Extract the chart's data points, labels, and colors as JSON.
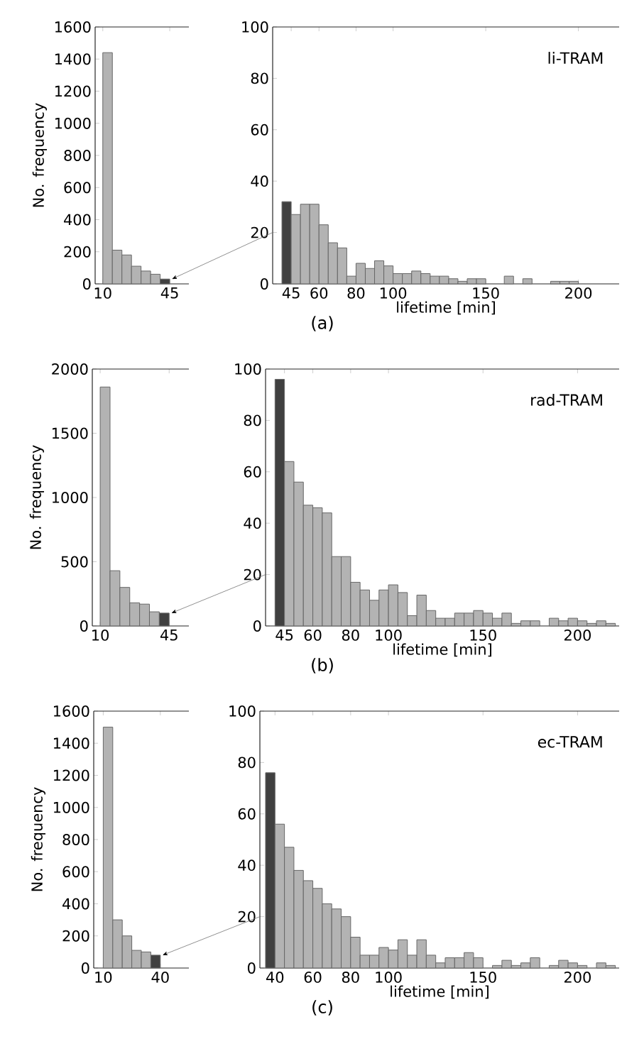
{
  "chart_data": [
    {
      "type": "histogram",
      "ylabel": "No. frequency",
      "bins": [
        10,
        15,
        20,
        25,
        30,
        35,
        40,
        45
      ],
      "values": [
        1440,
        210,
        180,
        110,
        80,
        60,
        30
      ],
      "colors": [
        "#b3b3b3",
        "#b3b3b3",
        "#b3b3b3",
        "#b3b3b3",
        "#b3b3b3",
        "#b3b3b3",
        "#404040"
      ],
      "xlim": [
        6,
        55
      ],
      "ylim": [
        0,
        1600
      ],
      "xticks": [
        10,
        45
      ],
      "yticks": [
        0,
        200,
        400,
        600,
        800,
        1000,
        1200,
        1400,
        1600
      ]
    },
    {
      "type": "histogram",
      "title": "li-TRAM",
      "xlabel": "lifetime [min]",
      "annotations": [
        "(a)"
      ],
      "bins": [
        40,
        45,
        50,
        55,
        60,
        65,
        70,
        75,
        80,
        85,
        90,
        95,
        100,
        105,
        110,
        115,
        120,
        125,
        130,
        135,
        140,
        145,
        150,
        155,
        160,
        165,
        170,
        175,
        180,
        185,
        190,
        195,
        200,
        205,
        210,
        215,
        220
      ],
      "values": [
        32,
        27,
        31,
        31,
        23,
        16,
        14,
        3,
        8,
        6,
        9,
        7,
        4,
        4,
        5,
        4,
        3,
        3,
        2,
        1,
        2,
        2,
        0,
        0,
        3,
        0,
        2,
        0,
        0,
        1,
        1,
        1,
        0,
        0,
        0,
        0
      ],
      "colors": [
        "#404040",
        "#b3b3b3",
        "#b3b3b3",
        "#b3b3b3",
        "#b3b3b3",
        "#b3b3b3",
        "#b3b3b3",
        "#b3b3b3",
        "#b3b3b3",
        "#b3b3b3",
        "#b3b3b3",
        "#b3b3b3",
        "#b3b3b3",
        "#b3b3b3",
        "#b3b3b3",
        "#b3b3b3",
        "#b3b3b3",
        "#b3b3b3",
        "#b3b3b3",
        "#b3b3b3",
        "#b3b3b3",
        "#b3b3b3",
        "#b3b3b3",
        "#b3b3b3",
        "#b3b3b3",
        "#b3b3b3",
        "#b3b3b3",
        "#b3b3b3",
        "#b3b3b3",
        "#b3b3b3",
        "#b3b3b3",
        "#b3b3b3",
        "#b3b3b3",
        "#b3b3b3",
        "#b3b3b3",
        "#b3b3b3"
      ],
      "xlim": [
        35,
        222
      ],
      "ylim": [
        0,
        100
      ],
      "xticks": [
        45,
        60,
        80,
        100,
        150,
        200
      ],
      "yticks": [
        0,
        20,
        40,
        60,
        80,
        100
      ]
    },
    {
      "type": "histogram",
      "ylabel": "No. frequency",
      "bins": [
        10,
        15,
        20,
        25,
        30,
        35,
        40,
        45
      ],
      "values": [
        1860,
        430,
        300,
        180,
        170,
        110,
        100
      ],
      "colors": [
        "#b3b3b3",
        "#b3b3b3",
        "#b3b3b3",
        "#b3b3b3",
        "#b3b3b3",
        "#b3b3b3",
        "#404040"
      ],
      "xlim": [
        6,
        55
      ],
      "ylim": [
        0,
        2000
      ],
      "xticks": [
        10,
        45
      ],
      "yticks": [
        0,
        500,
        1000,
        1500,
        2000
      ]
    },
    {
      "type": "histogram",
      "title": "rad-TRAM",
      "xlabel": "lifetime [min]",
      "annotations": [
        "(b)"
      ],
      "bins": [
        40,
        45,
        50,
        55,
        60,
        65,
        70,
        75,
        80,
        85,
        90,
        95,
        100,
        105,
        110,
        115,
        120,
        125,
        130,
        135,
        140,
        145,
        150,
        155,
        160,
        165,
        170,
        175,
        180,
        185,
        190,
        195,
        200,
        205,
        210,
        215,
        220
      ],
      "values": [
        96,
        64,
        56,
        47,
        46,
        44,
        27,
        27,
        17,
        14,
        10,
        14,
        16,
        13,
        4,
        12,
        6,
        3,
        3,
        5,
        5,
        6,
        5,
        3,
        5,
        1,
        2,
        2,
        0,
        3,
        2,
        3,
        2,
        1,
        2,
        1
      ],
      "colors": [
        "#404040",
        "#b3b3b3",
        "#b3b3b3",
        "#b3b3b3",
        "#b3b3b3",
        "#b3b3b3",
        "#b3b3b3",
        "#b3b3b3",
        "#b3b3b3",
        "#b3b3b3",
        "#b3b3b3",
        "#b3b3b3",
        "#b3b3b3",
        "#b3b3b3",
        "#b3b3b3",
        "#b3b3b3",
        "#b3b3b3",
        "#b3b3b3",
        "#b3b3b3",
        "#b3b3b3",
        "#b3b3b3",
        "#b3b3b3",
        "#b3b3b3",
        "#b3b3b3",
        "#b3b3b3",
        "#b3b3b3",
        "#b3b3b3",
        "#b3b3b3",
        "#b3b3b3",
        "#b3b3b3",
        "#b3b3b3",
        "#b3b3b3",
        "#b3b3b3",
        "#b3b3b3",
        "#b3b3b3",
        "#b3b3b3"
      ],
      "xlim": [
        35,
        222
      ],
      "ylim": [
        0,
        100
      ],
      "xticks": [
        45,
        60,
        80,
        100,
        150,
        200
      ],
      "yticks": [
        0,
        20,
        40,
        60,
        80,
        100
      ]
    },
    {
      "type": "histogram",
      "ylabel": "No. frequency",
      "bins": [
        10,
        15,
        20,
        25,
        30,
        35,
        40
      ],
      "values": [
        1500,
        300,
        200,
        110,
        100,
        80
      ],
      "colors": [
        "#b3b3b3",
        "#b3b3b3",
        "#b3b3b3",
        "#b3b3b3",
        "#b3b3b3",
        "#404040"
      ],
      "xlim": [
        5,
        55
      ],
      "ylim": [
        0,
        1600
      ],
      "xticks": [
        10,
        40
      ],
      "yticks": [
        0,
        200,
        400,
        600,
        800,
        1000,
        1200,
        1400,
        1600
      ]
    },
    {
      "type": "histogram",
      "title": "ec-TRAM",
      "xlabel": "lifetime [min]",
      "annotations": [
        "(c)"
      ],
      "bins": [
        35,
        40,
        45,
        50,
        55,
        60,
        65,
        70,
        75,
        80,
        85,
        90,
        95,
        100,
        105,
        110,
        115,
        120,
        125,
        130,
        135,
        140,
        145,
        150,
        155,
        160,
        165,
        170,
        175,
        180,
        185,
        190,
        195,
        200,
        205,
        210,
        215,
        220
      ],
      "values": [
        76,
        56,
        47,
        38,
        34,
        31,
        25,
        23,
        20,
        12,
        5,
        5,
        8,
        7,
        11,
        5,
        11,
        5,
        2,
        4,
        4,
        6,
        4,
        0,
        1,
        3,
        1,
        2,
        4,
        0,
        1,
        3,
        2,
        1,
        0,
        2,
        1
      ],
      "colors": [
        "#404040",
        "#b3b3b3",
        "#b3b3b3",
        "#b3b3b3",
        "#b3b3b3",
        "#b3b3b3",
        "#b3b3b3",
        "#b3b3b3",
        "#b3b3b3",
        "#b3b3b3",
        "#b3b3b3",
        "#b3b3b3",
        "#b3b3b3",
        "#b3b3b3",
        "#b3b3b3",
        "#b3b3b3",
        "#b3b3b3",
        "#b3b3b3",
        "#b3b3b3",
        "#b3b3b3",
        "#b3b3b3",
        "#b3b3b3",
        "#b3b3b3",
        "#b3b3b3",
        "#b3b3b3",
        "#b3b3b3",
        "#b3b3b3",
        "#b3b3b3",
        "#b3b3b3",
        "#b3b3b3",
        "#b3b3b3",
        "#b3b3b3",
        "#b3b3b3",
        "#b3b3b3",
        "#b3b3b3",
        "#b3b3b3",
        "#b3b3b3"
      ],
      "xlim": [
        32,
        222
      ],
      "ylim": [
        0,
        100
      ],
      "xticks": [
        40,
        60,
        80,
        100,
        150,
        200
      ],
      "yticks": [
        0,
        20,
        40,
        60,
        80,
        100
      ]
    }
  ]
}
